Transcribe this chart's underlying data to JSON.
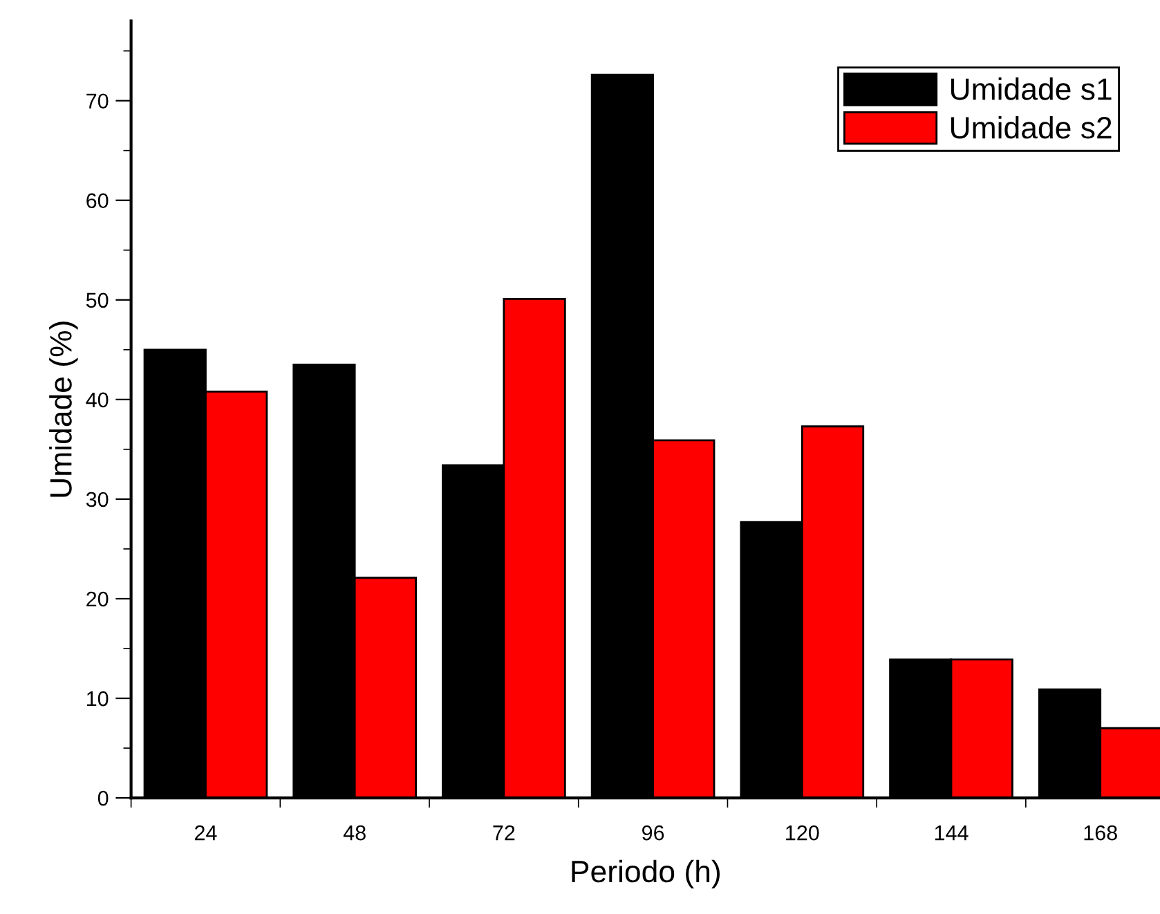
{
  "chart_data": {
    "type": "bar",
    "xlabel": "Periodo (h)",
    "ylabel": "Umidade (%)",
    "categories": [
      "24",
      "48",
      "72",
      "96",
      "120",
      "144",
      "168"
    ],
    "series": [
      {
        "name": "Umidade s1",
        "color": "#000000",
        "values": [
          45.0,
          43.5,
          33.4,
          72.6,
          27.7,
          13.9,
          10.9
        ]
      },
      {
        "name": "Umidade s2",
        "color": "#ff0000",
        "values": [
          40.8,
          22.1,
          50.1,
          35.9,
          37.3,
          13.9,
          7.0
        ]
      }
    ],
    "ylim": [
      0,
      78
    ],
    "yticks": [
      0,
      10,
      20,
      30,
      40,
      50,
      60,
      70
    ],
    "grid": false,
    "legend": "top right"
  }
}
